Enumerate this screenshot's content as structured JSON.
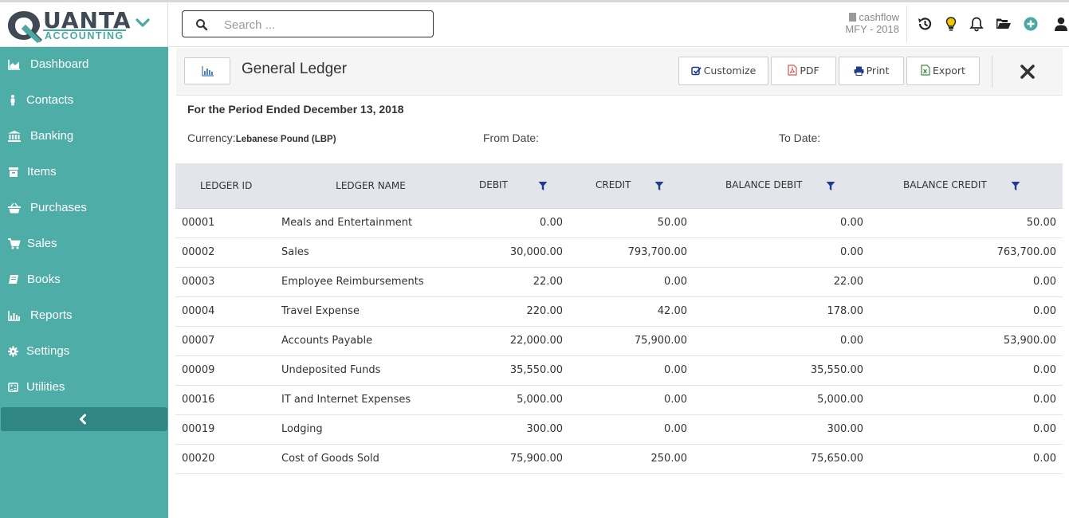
{
  "brand": {
    "name_top": "UANTA",
    "name_bottom": "ACCOUNTING"
  },
  "search": {
    "placeholder": "Search ..."
  },
  "company": {
    "name": "cashflow",
    "fiscal_year": "MFY - 2018"
  },
  "topbar_icons": [
    "history-icon",
    "lightbulb-icon",
    "bell-icon",
    "folder-open-icon",
    "add-circle-icon",
    "user-icon"
  ],
  "colors": {
    "sidebar": "#4fada8",
    "sidebar_active": "#2f8682",
    "brand_teal": "#4aa9a3",
    "filter_icon": "#1f3c8a"
  },
  "sidebar": {
    "items": [
      {
        "label": "Dashboard",
        "icon": "area-chart-icon"
      },
      {
        "label": "Contacts",
        "icon": "male-icon"
      },
      {
        "label": "Banking",
        "icon": "bank-icon"
      },
      {
        "label": "Items",
        "icon": "archive-icon"
      },
      {
        "label": "Purchases",
        "icon": "basket-icon"
      },
      {
        "label": "Sales",
        "icon": "cart-icon"
      },
      {
        "label": "Books",
        "icon": "book-icon"
      },
      {
        "label": "Reports",
        "icon": "bar-chart-icon"
      },
      {
        "label": "Settings",
        "icon": "gear-icon"
      },
      {
        "label": "Utilities",
        "icon": "calculator-icon"
      }
    ]
  },
  "page": {
    "title": "General Ledger",
    "toolbar": {
      "customize": "Customize",
      "pdf": "PDF",
      "print": "Print",
      "export": "Export"
    }
  },
  "report": {
    "period": "For the Period Ended December 13, 2018",
    "currency_label": "Currency:",
    "currency_value": "Lebanese Pound (LBP)",
    "from_label": "From Date:",
    "to_label": "To Date:"
  },
  "table": {
    "headers": [
      "LEDGER ID",
      "LEDGER NAME",
      "DEBIT",
      "CREDIT",
      "BALANCE DEBIT",
      "BALANCE CREDIT"
    ],
    "rows": [
      [
        "00001",
        "Meals and Entertainment",
        "0.00",
        "50.00",
        "0.00",
        "50.00"
      ],
      [
        "00002",
        "Sales",
        "30,000.00",
        "793,700.00",
        "0.00",
        "763,700.00"
      ],
      [
        "00003",
        "Employee Reimbursements",
        "22.00",
        "0.00",
        "22.00",
        "0.00"
      ],
      [
        "00004",
        "Travel Expense",
        "220.00",
        "42.00",
        "178.00",
        "0.00"
      ],
      [
        "00007",
        "Accounts Payable",
        "22,000.00",
        "75,900.00",
        "0.00",
        "53,900.00"
      ],
      [
        "00009",
        "Undeposited Funds",
        "35,550.00",
        "0.00",
        "35,550.00",
        "0.00"
      ],
      [
        "00016",
        "IT and Internet Expenses",
        "5,000.00",
        "0.00",
        "5,000.00",
        "0.00"
      ],
      [
        "00019",
        "Lodging",
        "300.00",
        "0.00",
        "300.00",
        "0.00"
      ],
      [
        "00020",
        "Cost of Goods Sold",
        "75,900.00",
        "250.00",
        "75,650.00",
        "0.00"
      ]
    ]
  }
}
